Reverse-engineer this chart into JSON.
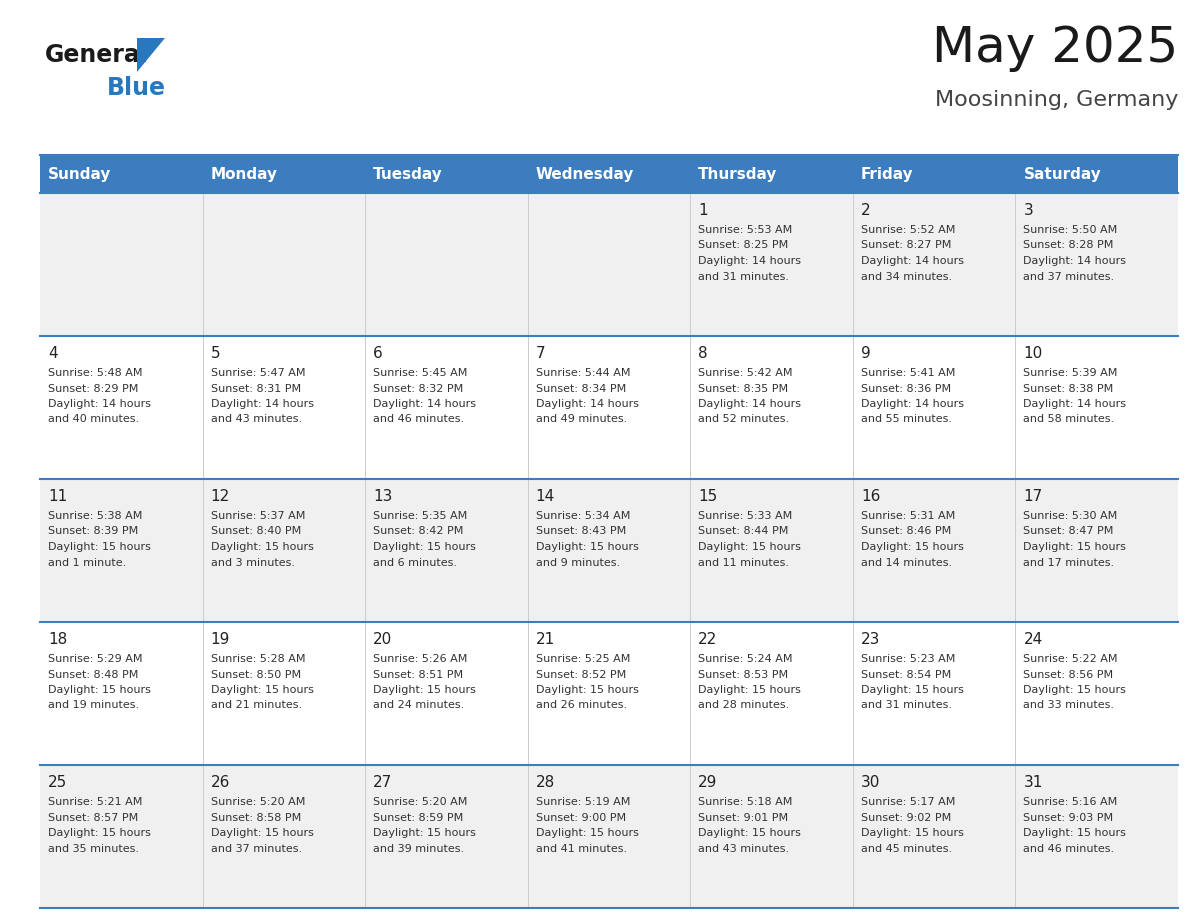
{
  "title": "May 2025",
  "subtitle": "Moosinning, Germany",
  "days_of_week": [
    "Sunday",
    "Monday",
    "Tuesday",
    "Wednesday",
    "Thursday",
    "Friday",
    "Saturday"
  ],
  "header_bg": "#3c7dbf",
  "header_text": "#ffffff",
  "row_bg_odd": "#f0f0f0",
  "row_bg_even": "#ffffff",
  "cell_border_color": "#3c7dbf",
  "day_num_color": "#222222",
  "info_text_color": "#333333",
  "logo_general_color": "#1a1a1a",
  "logo_blue_color": "#2878c0",
  "fig_width": 11.88,
  "fig_height": 9.18,
  "calendar_data": [
    {
      "day": 1,
      "col": 4,
      "row": 0,
      "sunrise": "5:53 AM",
      "sunset": "8:25 PM",
      "daylight_hours": "14 hours",
      "daylight_mins": "and 31 minutes."
    },
    {
      "day": 2,
      "col": 5,
      "row": 0,
      "sunrise": "5:52 AM",
      "sunset": "8:27 PM",
      "daylight_hours": "14 hours",
      "daylight_mins": "and 34 minutes."
    },
    {
      "day": 3,
      "col": 6,
      "row": 0,
      "sunrise": "5:50 AM",
      "sunset": "8:28 PM",
      "daylight_hours": "14 hours",
      "daylight_mins": "and 37 minutes."
    },
    {
      "day": 4,
      "col": 0,
      "row": 1,
      "sunrise": "5:48 AM",
      "sunset": "8:29 PM",
      "daylight_hours": "14 hours",
      "daylight_mins": "and 40 minutes."
    },
    {
      "day": 5,
      "col": 1,
      "row": 1,
      "sunrise": "5:47 AM",
      "sunset": "8:31 PM",
      "daylight_hours": "14 hours",
      "daylight_mins": "and 43 minutes."
    },
    {
      "day": 6,
      "col": 2,
      "row": 1,
      "sunrise": "5:45 AM",
      "sunset": "8:32 PM",
      "daylight_hours": "14 hours",
      "daylight_mins": "and 46 minutes."
    },
    {
      "day": 7,
      "col": 3,
      "row": 1,
      "sunrise": "5:44 AM",
      "sunset": "8:34 PM",
      "daylight_hours": "14 hours",
      "daylight_mins": "and 49 minutes."
    },
    {
      "day": 8,
      "col": 4,
      "row": 1,
      "sunrise": "5:42 AM",
      "sunset": "8:35 PM",
      "daylight_hours": "14 hours",
      "daylight_mins": "and 52 minutes."
    },
    {
      "day": 9,
      "col": 5,
      "row": 1,
      "sunrise": "5:41 AM",
      "sunset": "8:36 PM",
      "daylight_hours": "14 hours",
      "daylight_mins": "and 55 minutes."
    },
    {
      "day": 10,
      "col": 6,
      "row": 1,
      "sunrise": "5:39 AM",
      "sunset": "8:38 PM",
      "daylight_hours": "14 hours",
      "daylight_mins": "and 58 minutes."
    },
    {
      "day": 11,
      "col": 0,
      "row": 2,
      "sunrise": "5:38 AM",
      "sunset": "8:39 PM",
      "daylight_hours": "15 hours",
      "daylight_mins": "and 1 minute."
    },
    {
      "day": 12,
      "col": 1,
      "row": 2,
      "sunrise": "5:37 AM",
      "sunset": "8:40 PM",
      "daylight_hours": "15 hours",
      "daylight_mins": "and 3 minutes."
    },
    {
      "day": 13,
      "col": 2,
      "row": 2,
      "sunrise": "5:35 AM",
      "sunset": "8:42 PM",
      "daylight_hours": "15 hours",
      "daylight_mins": "and 6 minutes."
    },
    {
      "day": 14,
      "col": 3,
      "row": 2,
      "sunrise": "5:34 AM",
      "sunset": "8:43 PM",
      "daylight_hours": "15 hours",
      "daylight_mins": "and 9 minutes."
    },
    {
      "day": 15,
      "col": 4,
      "row": 2,
      "sunrise": "5:33 AM",
      "sunset": "8:44 PM",
      "daylight_hours": "15 hours",
      "daylight_mins": "and 11 minutes."
    },
    {
      "day": 16,
      "col": 5,
      "row": 2,
      "sunrise": "5:31 AM",
      "sunset": "8:46 PM",
      "daylight_hours": "15 hours",
      "daylight_mins": "and 14 minutes."
    },
    {
      "day": 17,
      "col": 6,
      "row": 2,
      "sunrise": "5:30 AM",
      "sunset": "8:47 PM",
      "daylight_hours": "15 hours",
      "daylight_mins": "and 17 minutes."
    },
    {
      "day": 18,
      "col": 0,
      "row": 3,
      "sunrise": "5:29 AM",
      "sunset": "8:48 PM",
      "daylight_hours": "15 hours",
      "daylight_mins": "and 19 minutes."
    },
    {
      "day": 19,
      "col": 1,
      "row": 3,
      "sunrise": "5:28 AM",
      "sunset": "8:50 PM",
      "daylight_hours": "15 hours",
      "daylight_mins": "and 21 minutes."
    },
    {
      "day": 20,
      "col": 2,
      "row": 3,
      "sunrise": "5:26 AM",
      "sunset": "8:51 PM",
      "daylight_hours": "15 hours",
      "daylight_mins": "and 24 minutes."
    },
    {
      "day": 21,
      "col": 3,
      "row": 3,
      "sunrise": "5:25 AM",
      "sunset": "8:52 PM",
      "daylight_hours": "15 hours",
      "daylight_mins": "and 26 minutes."
    },
    {
      "day": 22,
      "col": 4,
      "row": 3,
      "sunrise": "5:24 AM",
      "sunset": "8:53 PM",
      "daylight_hours": "15 hours",
      "daylight_mins": "and 28 minutes."
    },
    {
      "day": 23,
      "col": 5,
      "row": 3,
      "sunrise": "5:23 AM",
      "sunset": "8:54 PM",
      "daylight_hours": "15 hours",
      "daylight_mins": "and 31 minutes."
    },
    {
      "day": 24,
      "col": 6,
      "row": 3,
      "sunrise": "5:22 AM",
      "sunset": "8:56 PM",
      "daylight_hours": "15 hours",
      "daylight_mins": "and 33 minutes."
    },
    {
      "day": 25,
      "col": 0,
      "row": 4,
      "sunrise": "5:21 AM",
      "sunset": "8:57 PM",
      "daylight_hours": "15 hours",
      "daylight_mins": "and 35 minutes."
    },
    {
      "day": 26,
      "col": 1,
      "row": 4,
      "sunrise": "5:20 AM",
      "sunset": "8:58 PM",
      "daylight_hours": "15 hours",
      "daylight_mins": "and 37 minutes."
    },
    {
      "day": 27,
      "col": 2,
      "row": 4,
      "sunrise": "5:20 AM",
      "sunset": "8:59 PM",
      "daylight_hours": "15 hours",
      "daylight_mins": "and 39 minutes."
    },
    {
      "day": 28,
      "col": 3,
      "row": 4,
      "sunrise": "5:19 AM",
      "sunset": "9:00 PM",
      "daylight_hours": "15 hours",
      "daylight_mins": "and 41 minutes."
    },
    {
      "day": 29,
      "col": 4,
      "row": 4,
      "sunrise": "5:18 AM",
      "sunset": "9:01 PM",
      "daylight_hours": "15 hours",
      "daylight_mins": "and 43 minutes."
    },
    {
      "day": 30,
      "col": 5,
      "row": 4,
      "sunrise": "5:17 AM",
      "sunset": "9:02 PM",
      "daylight_hours": "15 hours",
      "daylight_mins": "and 45 minutes."
    },
    {
      "day": 31,
      "col": 6,
      "row": 4,
      "sunrise": "5:16 AM",
      "sunset": "9:03 PM",
      "daylight_hours": "15 hours",
      "daylight_mins": "and 46 minutes."
    }
  ]
}
